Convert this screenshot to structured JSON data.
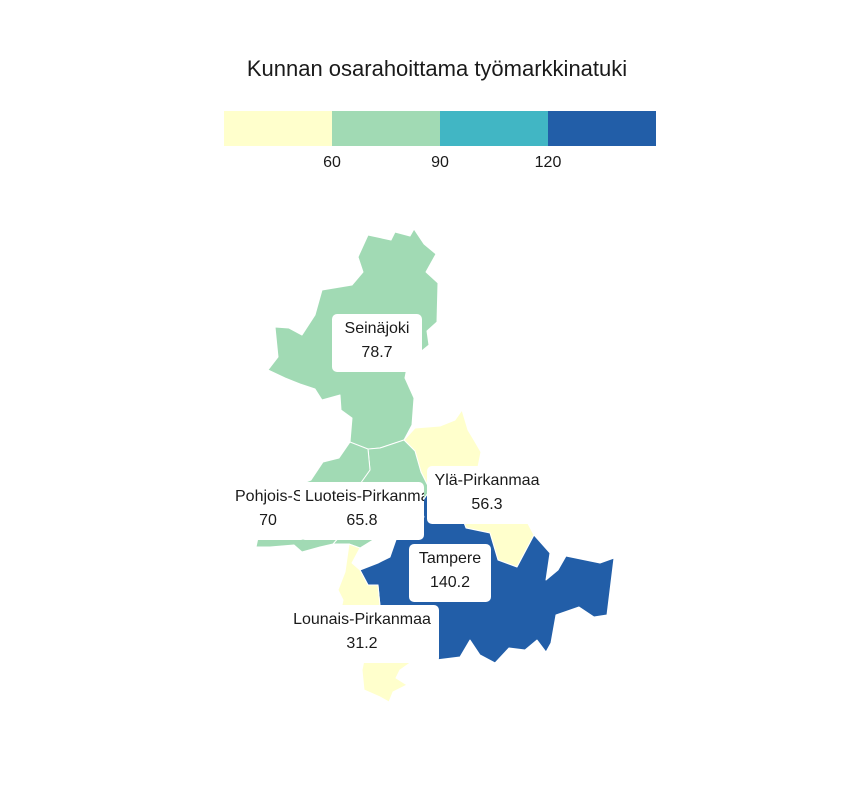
{
  "title": "Kunnan osarahoittama työmarkkinatuki",
  "legend": {
    "colors": [
      "#ffffcc",
      "#a1dab4",
      "#41b6c4",
      "#225ea8"
    ],
    "ticks": [
      "60",
      "90",
      "120"
    ]
  },
  "regions": [
    {
      "name": "Seinäjoki",
      "value": "78.7",
      "color": "#a1dab4"
    },
    {
      "name": "Pohjois-Satakunta",
      "value": "70",
      "color": "#a1dab4"
    },
    {
      "name": "Luoteis-Pirkanmaa",
      "value": "65.8",
      "color": "#a1dab4"
    },
    {
      "name": "Ylä-Pirkanmaa",
      "value": "56.3",
      "color": "#ffffcc"
    },
    {
      "name": "Tampere",
      "value": "140.2",
      "color": "#225ea8"
    },
    {
      "name": "Lounais-Pirkanmaa",
      "value": "31.2",
      "color": "#ffffcc"
    }
  ]
}
